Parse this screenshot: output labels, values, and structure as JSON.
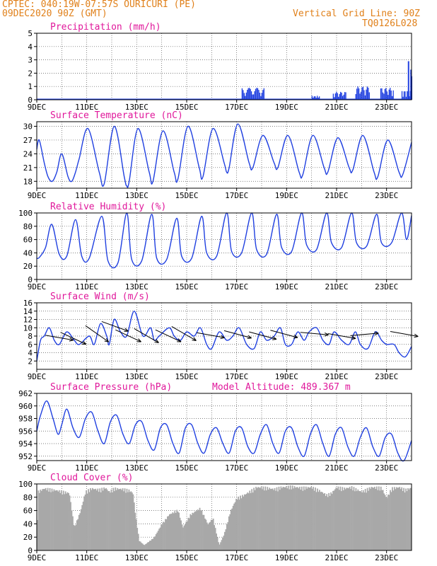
{
  "header": {
    "station_line": "CPTEC:  040:19W-07:57S  OURICURI (PE)",
    "date_line": "09DEC2020 90Z (GMT)",
    "grid_line": "Vertical Grid Line: 90Z",
    "code": "TQ0126L028"
  },
  "colors": {
    "header": "#e0801a",
    "title": "#e0189b",
    "series": "#2040e0",
    "cloud": "#a8a8a8",
    "wind_arrow": "#000000"
  },
  "x_axis": {
    "start": "09DEC",
    "end": "24DEC",
    "tick_labels": [
      "9DEC",
      "11DEC",
      "13DEC",
      "15DEC",
      "17DEC",
      "19DEC",
      "21DEC",
      "23DEC"
    ],
    "tick_days": [
      0,
      2,
      4,
      6,
      8,
      10,
      12,
      14
    ],
    "gridlines": "dotted, daily"
  },
  "chart_data": [
    {
      "type": "bar",
      "title": "Precipitation (mm/h)",
      "ylim": [
        0,
        5
      ],
      "yticks": [
        0,
        1,
        2,
        3,
        4,
        5
      ],
      "bursts": [
        {
          "start_day": 8.2,
          "end_day": 9.1,
          "peak": 0.9
        },
        {
          "start_day": 11.0,
          "end_day": 11.3,
          "peak": 0.3
        },
        {
          "start_day": 11.85,
          "end_day": 12.35,
          "peak": 0.6
        },
        {
          "start_day": 12.75,
          "end_day": 13.3,
          "peak": 1.0
        },
        {
          "start_day": 13.75,
          "end_day": 14.25,
          "peak": 0.9
        },
        {
          "start_day": 14.6,
          "end_day": 14.95,
          "peak": 0.7
        },
        {
          "start_day": 14.95,
          "end_day": 15.0,
          "peak": 2.9
        }
      ]
    },
    {
      "type": "line",
      "title": "Surface Temperature (nC)",
      "ylim": [
        16.5,
        31
      ],
      "yticks": [
        18,
        21,
        24,
        27,
        30
      ],
      "x": [
        0,
        0.1,
        0.3,
        0.45,
        0.62,
        0.8,
        1.0,
        1.25,
        1.4,
        1.55,
        1.7,
        2.05,
        2.5,
        2.7,
        3.1,
        3.5,
        3.6,
        3.7,
        4.05,
        4.5,
        4.65,
        5.05,
        5.5,
        5.65,
        6.05,
        6.5,
        6.65,
        7.05,
        7.5,
        7.6,
        7.7,
        8.05,
        8.5,
        8.65,
        9.05,
        9.5,
        9.65,
        10.05,
        10.5,
        10.65,
        11.05,
        11.5,
        11.65,
        12.05,
        12.5,
        12.65,
        13.05,
        13.5,
        13.65,
        14.05,
        14.5,
        14.65,
        15.0
      ],
      "values": [
        25,
        27,
        22,
        19,
        18,
        20,
        24,
        19,
        18,
        20,
        23,
        29.5,
        20,
        17.5,
        30,
        19,
        17,
        18,
        29.5,
        20,
        18,
        29,
        20,
        18.5,
        30,
        21,
        19,
        29.5,
        22,
        20,
        21,
        30.5,
        22,
        21,
        28,
        22,
        21,
        28,
        20,
        19.5,
        28,
        21,
        20,
        27.5,
        21,
        20.5,
        28,
        20,
        19,
        27,
        20,
        19.5,
        26.5
      ]
    },
    {
      "type": "line",
      "title": "Relative Humidity (%)",
      "ylim": [
        0,
        100
      ],
      "yticks": [
        0,
        20,
        40,
        60,
        80,
        100
      ],
      "x": [
        0,
        0.1,
        0.35,
        0.6,
        0.9,
        1.2,
        1.55,
        1.8,
        2.1,
        2.6,
        2.85,
        3.25,
        3.6,
        3.8,
        4.2,
        4.6,
        4.8,
        5.2,
        5.6,
        5.8,
        6.2,
        6.6,
        6.8,
        7.2,
        7.6,
        7.8,
        8.2,
        8.6,
        8.8,
        9.2,
        9.6,
        9.8,
        10.2,
        10.6,
        10.8,
        11.2,
        11.6,
        11.8,
        12.2,
        12.6,
        12.8,
        13.2,
        13.6,
        13.8,
        14.2,
        14.6,
        14.8,
        15.0
      ],
      "values": [
        32,
        33,
        48,
        83,
        38,
        35,
        90,
        35,
        32,
        95,
        28,
        25,
        100,
        30,
        28,
        98,
        32,
        30,
        92,
        35,
        32,
        95,
        40,
        35,
        100,
        42,
        40,
        100,
        45,
        38,
        98,
        48,
        42,
        100,
        52,
        45,
        100,
        55,
        48,
        100,
        55,
        50,
        98,
        55,
        55,
        100,
        60,
        96
      ]
    },
    {
      "type": "line",
      "title": "Surface Wind (m/s)",
      "ylim": [
        0,
        16
      ],
      "yticks": [
        2,
        4,
        6,
        8,
        10,
        12,
        14,
        16
      ],
      "x": [
        0,
        0.15,
        0.3,
        0.5,
        0.7,
        0.9,
        1.2,
        1.5,
        1.7,
        2.1,
        2.3,
        2.55,
        2.8,
        2.9,
        3.1,
        3.35,
        3.6,
        3.9,
        4.25,
        4.55,
        4.7,
        4.9,
        5.3,
        5.5,
        5.75,
        6.0,
        6.3,
        6.55,
        6.8,
        7.0,
        7.3,
        7.6,
        7.85,
        8.1,
        8.4,
        8.7,
        8.95,
        9.2,
        9.5,
        9.75,
        9.95,
        10.2,
        10.45,
        10.7,
        10.9,
        11.2,
        11.45,
        11.7,
        11.9,
        12.2,
        12.5,
        12.75,
        12.95,
        13.25,
        13.55,
        13.8,
        14.0,
        14.3,
        14.5,
        14.75,
        15.0
      ],
      "values": [
        2,
        7,
        8,
        10,
        7,
        6,
        9,
        7,
        6,
        8,
        6,
        11,
        8,
        6,
        12,
        9,
        8,
        14,
        8,
        10,
        7,
        8,
        10,
        8,
        7,
        9,
        8,
        10,
        6,
        5,
        9,
        7,
        8,
        10,
        6,
        5,
        9,
        7,
        8,
        10,
        6,
        6,
        9,
        7,
        9,
        10,
        7,
        6,
        9,
        7,
        6,
        9,
        6,
        5,
        9,
        7,
        6,
        6,
        4,
        3,
        5.5
      ]
    },
    {
      "type": "line",
      "title": "Surface Pressure (hPa)",
      "annotation": "Model Altitude: 489.367 m",
      "ylim": [
        951.3,
        962
      ],
      "yticks": [
        952,
        954,
        956,
        958,
        960,
        962
      ],
      "x": [
        0,
        0.15,
        0.4,
        0.65,
        0.85,
        1.0,
        1.2,
        1.45,
        1.7,
        1.95,
        2.2,
        2.45,
        2.7,
        2.95,
        3.2,
        3.45,
        3.7,
        3.95,
        4.2,
        4.45,
        4.7,
        4.95,
        5.2,
        5.45,
        5.7,
        5.95,
        6.2,
        6.45,
        6.7,
        6.95,
        7.2,
        7.45,
        7.7,
        7.95,
        8.2,
        8.45,
        8.7,
        8.95,
        9.2,
        9.45,
        9.7,
        9.95,
        10.2,
        10.45,
        10.7,
        10.95,
        11.2,
        11.45,
        11.7,
        11.95,
        12.2,
        12.45,
        12.7,
        12.95,
        13.2,
        13.45,
        13.7,
        13.95,
        14.2,
        14.45,
        14.7,
        15.0
      ],
      "values": [
        956,
        958.5,
        960.8,
        958,
        955.5,
        957,
        959.5,
        956.5,
        955,
        958,
        959,
        956,
        954,
        957.5,
        958.5,
        955.5,
        954,
        957,
        957.5,
        954.5,
        953,
        956.5,
        957,
        954,
        952.5,
        956.5,
        957,
        954,
        952.5,
        955.5,
        956.5,
        954,
        952.5,
        956,
        956.5,
        953.5,
        952.5,
        955.5,
        957,
        954,
        952.5,
        956,
        956.5,
        953.5,
        952,
        955.5,
        957,
        954,
        952,
        955.5,
        956.5,
        953.5,
        952,
        955,
        956.5,
        953.5,
        952,
        955,
        955.5,
        952.5,
        951.3,
        954.5
      ]
    },
    {
      "type": "area",
      "title": "Cloud Cover (%)",
      "ylim": [
        0,
        100
      ],
      "yticks": [
        0,
        20,
        40,
        60,
        80,
        100
      ],
      "x": [
        0,
        0.05,
        0.3,
        0.8,
        1.3,
        1.5,
        1.75,
        1.95,
        2.2,
        2.5,
        2.75,
        2.9,
        3.1,
        3.45,
        3.7,
        3.85,
        3.95,
        4.1,
        4.3,
        4.7,
        5.0,
        5.3,
        5.65,
        5.85,
        6.15,
        6.55,
        6.85,
        7.05,
        7.3,
        7.5,
        7.75,
        8.0,
        8.3,
        8.8,
        9.2,
        9.5,
        9.8,
        10.2,
        10.6,
        11.0,
        11.3,
        11.6,
        11.8,
        12.0,
        12.3,
        12.6,
        13.0,
        13.4,
        13.8,
        14.0,
        14.2,
        14.5,
        14.75,
        15.0
      ],
      "values": [
        20,
        90,
        95,
        92,
        88,
        35,
        60,
        90,
        95,
        93,
        96,
        90,
        95,
        94,
        92,
        88,
        55,
        15,
        8,
        20,
        40,
        55,
        62,
        35,
        55,
        65,
        40,
        50,
        8,
        25,
        60,
        80,
        85,
        97,
        96,
        94,
        97,
        98,
        96,
        97,
        92,
        85,
        88,
        97,
        95,
        97,
        90,
        97,
        96,
        80,
        95,
        97,
        93,
        96
      ]
    }
  ],
  "wind_arrows": {
    "note": "",
    "items": [
      {
        "day": 0.35,
        "speed": 8.2,
        "dir_deg": 190
      },
      {
        "day": 0.95,
        "speed": 8.9,
        "dir_deg": 205
      },
      {
        "day": 1.95,
        "speed": 10.5,
        "dir_deg": 215
      },
      {
        "day": 2.6,
        "speed": 11.5,
        "dir_deg": 200
      },
      {
        "day": 3.15,
        "speed": 9.5,
        "dir_deg": 205
      },
      {
        "day": 3.9,
        "speed": 9.8,
        "dir_deg": 210
      },
      {
        "day": 4.75,
        "speed": 9.5,
        "dir_deg": 205
      },
      {
        "day": 5.4,
        "speed": 10.3,
        "dir_deg": 210
      },
      {
        "day": 6.4,
        "speed": 8.8,
        "dir_deg": 190
      },
      {
        "day": 7.5,
        "speed": 9.3,
        "dir_deg": 195
      },
      {
        "day": 8.5,
        "speed": 9.0,
        "dir_deg": 195
      },
      {
        "day": 9.35,
        "speed": 9.4,
        "dir_deg": 195
      },
      {
        "day": 10.55,
        "speed": 8.9,
        "dir_deg": 185
      },
      {
        "day": 11.65,
        "speed": 8.6,
        "dir_deg": 190
      },
      {
        "day": 12.55,
        "speed": 8.1,
        "dir_deg": 175
      },
      {
        "day": 14.15,
        "speed": 9.1,
        "dir_deg": 190
      }
    ]
  }
}
